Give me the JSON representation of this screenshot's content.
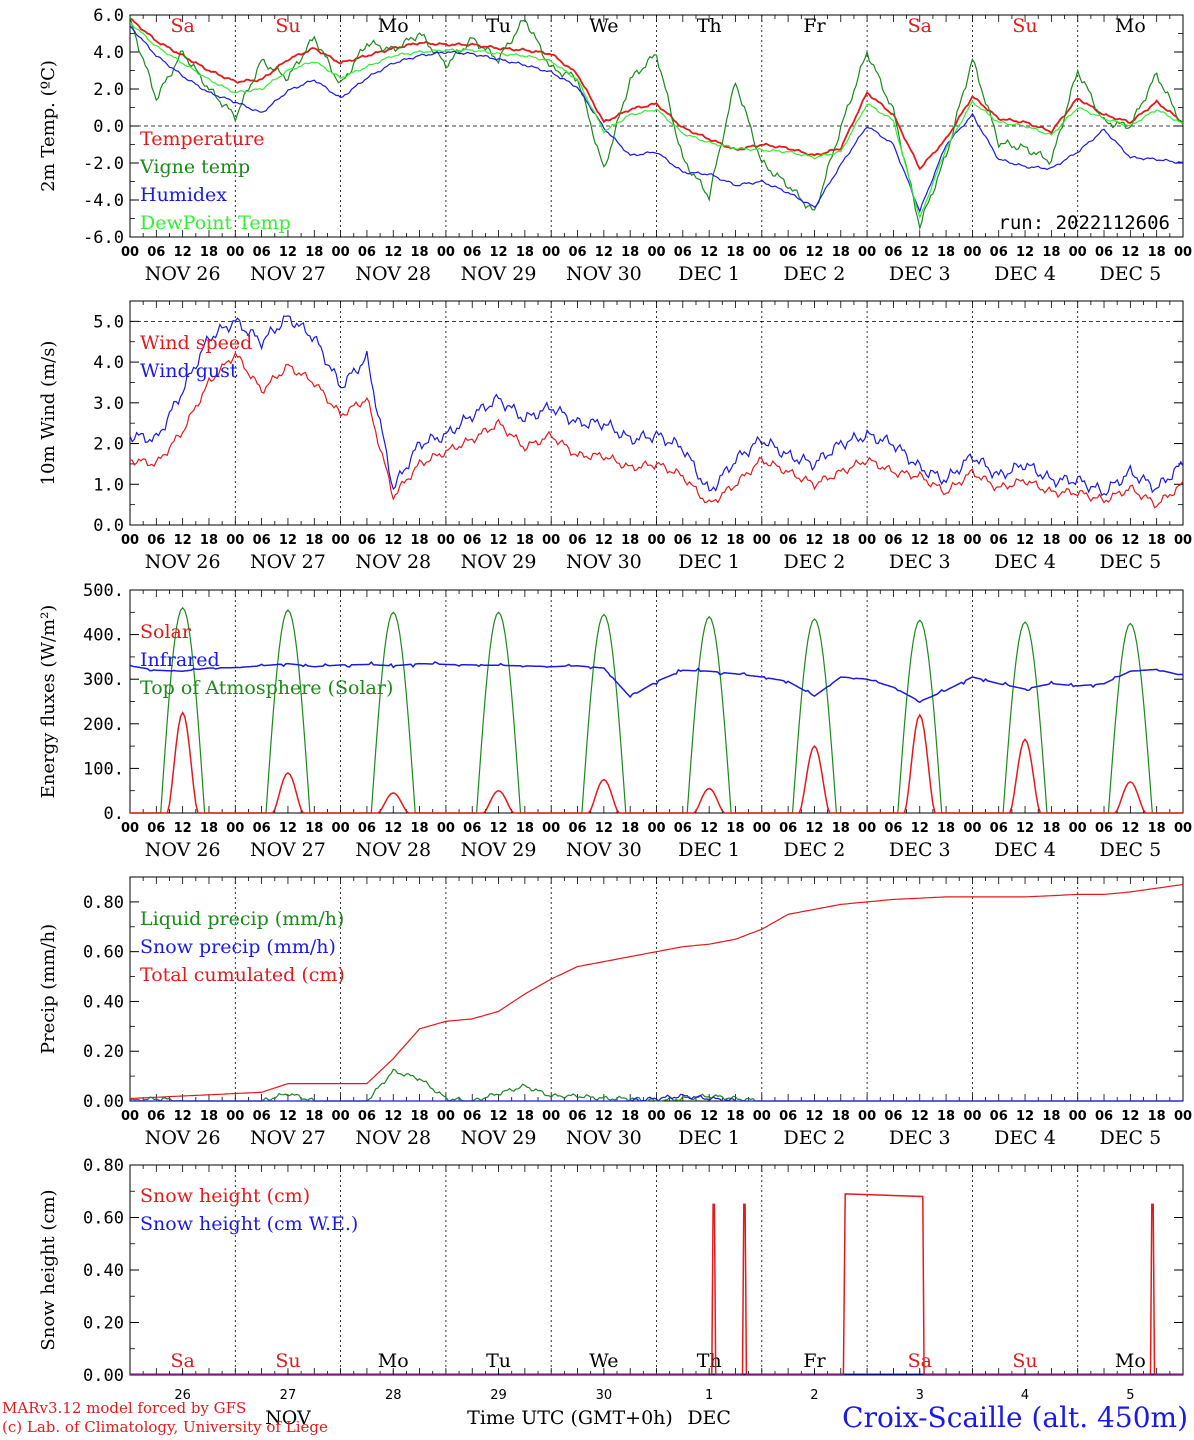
{
  "meta": {
    "run_label": "run: 2022112606",
    "credit_line1": "MARv3.12 model forced by GFS",
    "credit_line2": "(c) Lab. of Climatology, University of Liege",
    "station": "Croix-Scaille (alt. 450m)",
    "time_axis_label": "Time UTC (GMT+0h)",
    "month_label": "NOV",
    "month_label2": "DEC",
    "colors": {
      "red": "#e31a1c",
      "green": "#1a8a1a",
      "blue": "#1a1ae6",
      "lightgreen": "#33ee33"
    }
  },
  "time_axis": {
    "hour_ticks": [
      "00",
      "06",
      "12",
      "18"
    ],
    "hour_end": "00",
    "days": [
      "NOV 26",
      "NOV 27",
      "NOV 28",
      "NOV 29",
      "NOV 30",
      "DEC  1",
      "DEC  2",
      "DEC  3",
      "DEC  4",
      "DEC  5"
    ],
    "weekdays": [
      "Sa",
      "Su",
      "Mo",
      "Tu",
      "We",
      "Th",
      "Fr",
      "Sa",
      "Su",
      "Mo"
    ],
    "weekend": [
      true,
      true,
      false,
      false,
      false,
      false,
      false,
      true,
      true,
      false
    ],
    "day_numbers": [
      "26",
      "27",
      "28",
      "29",
      "30",
      "1",
      "2",
      "3",
      "4",
      "5"
    ]
  },
  "chart_data": [
    {
      "type": "line",
      "ylabel": "2m Temp. (ºC)",
      "ylim": [
        -6,
        6
      ],
      "yticks": [
        "6.0",
        "4.0",
        "2.0",
        "0.0",
        "-2.0",
        "-4.0",
        "-6.0"
      ],
      "x": [
        0,
        6,
        12,
        18,
        24,
        30,
        36,
        42,
        48,
        54,
        60,
        66,
        72,
        78,
        84,
        90,
        96,
        102,
        108,
        114,
        120,
        126,
        132,
        138,
        144,
        150,
        156,
        162,
        168,
        174,
        180,
        186,
        192,
        198,
        204,
        210,
        216,
        222,
        228,
        234,
        240
      ],
      "series": [
        {
          "name": "Temperature",
          "color": "#e31a1c",
          "values": [
            5.8,
            4.6,
            3.8,
            3.0,
            2.4,
            2.5,
            3.6,
            4.2,
            3.4,
            3.8,
            4.2,
            4.5,
            4.4,
            4.4,
            4.2,
            4.1,
            3.9,
            2.8,
            0.2,
            0.9,
            1.2,
            -0.1,
            -0.7,
            -1.3,
            -1.0,
            -1.2,
            -1.6,
            -1.2,
            1.8,
            0.6,
            -2.3,
            -0.7,
            1.6,
            0.4,
            0.2,
            -0.3,
            1.5,
            0.6,
            0.2,
            1.3,
            0.2
          ]
        },
        {
          "name": "Vigne temp",
          "color": "#1a8a1a",
          "values": [
            5.7,
            1.5,
            4.0,
            2.0,
            0.5,
            3.5,
            2.6,
            4.8,
            2.2,
            4.5,
            4.1,
            5.0,
            3.3,
            4.7,
            3.6,
            5.8,
            3.1,
            2.6,
            -2.4,
            2.5,
            3.9,
            -1.8,
            -3.8,
            2.4,
            -2.0,
            -3.2,
            -4.7,
            -0.1,
            4.0,
            0.8,
            -5.4,
            -1.6,
            3.6,
            -0.9,
            -1.2,
            -1.9,
            3.0,
            0.2,
            0.0,
            2.8,
            0.0
          ]
        },
        {
          "name": "Humidex",
          "color": "#1a1ae6",
          "values": [
            5.4,
            3.8,
            2.7,
            1.8,
            1.3,
            0.7,
            1.9,
            2.5,
            1.5,
            2.6,
            3.4,
            3.8,
            4.0,
            3.9,
            3.6,
            3.3,
            2.9,
            2.1,
            -0.1,
            -1.6,
            -1.4,
            -2.5,
            -2.6,
            -3.2,
            -3.0,
            -3.6,
            -4.4,
            -2.1,
            0.0,
            -1.0,
            -4.6,
            -1.0,
            0.6,
            -1.8,
            -2.2,
            -2.3,
            -1.4,
            -0.2,
            -1.7,
            -1.8,
            -2.0
          ]
        },
        {
          "name": "DewPoint Temp",
          "color": "#33ee33",
          "values": [
            5.6,
            4.3,
            3.4,
            2.5,
            1.8,
            2.0,
            3.0,
            3.5,
            2.6,
            3.2,
            3.8,
            4.0,
            4.1,
            4.1,
            3.9,
            3.8,
            3.5,
            2.5,
            -0.3,
            0.6,
            0.9,
            -0.4,
            -0.9,
            -1.2,
            -1.3,
            -1.4,
            -1.7,
            -1.4,
            1.2,
            0.3,
            -5.0,
            -1.2,
            1.3,
            0.2,
            0.0,
            -0.5,
            1.0,
            0.4,
            0.0,
            0.9,
            0.1
          ]
        }
      ]
    },
    {
      "type": "line",
      "ylabel": "10m Wind (m/s)",
      "ylim": [
        0,
        5.5
      ],
      "yticks": [
        "5.0",
        "4.0",
        "3.0",
        "2.0",
        "1.0",
        "0.0"
      ],
      "x": [
        0,
        6,
        12,
        18,
        24,
        30,
        36,
        42,
        48,
        54,
        60,
        66,
        72,
        78,
        84,
        90,
        96,
        102,
        108,
        114,
        120,
        126,
        132,
        138,
        144,
        150,
        156,
        162,
        168,
        174,
        180,
        186,
        192,
        198,
        204,
        210,
        216,
        222,
        228,
        234,
        240
      ],
      "series": [
        {
          "name": "Wind speed",
          "color": "#e31a1c",
          "values": [
            1.6,
            1.5,
            2.3,
            3.5,
            4.2,
            3.3,
            3.9,
            3.5,
            2.7,
            3.1,
            0.7,
            1.5,
            1.8,
            2.1,
            2.5,
            1.9,
            2.2,
            1.7,
            1.7,
            1.4,
            1.5,
            1.2,
            0.5,
            1.0,
            1.6,
            1.3,
            1.0,
            1.3,
            1.6,
            1.3,
            1.2,
            0.8,
            1.3,
            0.9,
            1.1,
            0.8,
            0.8,
            0.6,
            0.9,
            0.5,
            1.0
          ]
        },
        {
          "name": "Wind gust",
          "color": "#1a1ae6",
          "values": [
            2.2,
            2.1,
            3.3,
            4.6,
            5.0,
            4.5,
            5.1,
            4.6,
            3.4,
            4.1,
            0.9,
            2.0,
            2.2,
            2.7,
            3.1,
            2.6,
            2.9,
            2.5,
            2.5,
            2.1,
            2.2,
            1.9,
            0.8,
            1.6,
            2.1,
            1.7,
            1.5,
            2.0,
            2.2,
            2.0,
            1.4,
            1.1,
            1.7,
            1.2,
            1.5,
            1.1,
            1.1,
            0.8,
            1.3,
            0.9,
            1.5
          ]
        }
      ]
    },
    {
      "type": "line",
      "ylabel": "Energy fluxes (W/m²)",
      "ylim": [
        0,
        500
      ],
      "yticks": [
        "500.",
        "400.",
        "300.",
        "200.",
        "100.",
        "0."
      ],
      "x": [
        0,
        6,
        12,
        18,
        24,
        30,
        36,
        42,
        48,
        54,
        60,
        66,
        72,
        78,
        84,
        90,
        96,
        102,
        108,
        114,
        120,
        126,
        132,
        138,
        144,
        150,
        156,
        162,
        168,
        174,
        180,
        186,
        192,
        198,
        204,
        210,
        216,
        222,
        228,
        234,
        240
      ],
      "solar_peaks": [
        225,
        90,
        45,
        50,
        75,
        55,
        150,
        220,
        165,
        70
      ],
      "toa_peaks": [
        460,
        455,
        450,
        450,
        445,
        440,
        435,
        432,
        428,
        425
      ],
      "series": [
        {
          "name": "Solar",
          "color": "#e31a1c"
        },
        {
          "name": "Infrared",
          "color": "#1a1ae6",
          "values": [
            330,
            320,
            318,
            325,
            326,
            330,
            335,
            328,
            332,
            333,
            330,
            335,
            333,
            332,
            331,
            330,
            328,
            330,
            325,
            260,
            295,
            320,
            318,
            312,
            305,
            295,
            262,
            305,
            300,
            282,
            250,
            275,
            305,
            290,
            278,
            290,
            285,
            290,
            318,
            322,
            308
          ]
        },
        {
          "name": "Top of Atmosphere (Solar)",
          "color": "#1a8a1a"
        }
      ]
    },
    {
      "type": "line",
      "ylabel": "Precip (mm/h)",
      "ylim": [
        0,
        0.9
      ],
      "yticks": [
        "0.80",
        "0.60",
        "0.40",
        "0.20",
        "0.00"
      ],
      "x": [
        0,
        6,
        12,
        18,
        24,
        30,
        36,
        42,
        48,
        54,
        60,
        66,
        72,
        78,
        84,
        90,
        96,
        102,
        108,
        114,
        120,
        126,
        132,
        138,
        144,
        150,
        156,
        162,
        168,
        174,
        180,
        186,
        192,
        198,
        204,
        210,
        216,
        222,
        228,
        234,
        240
      ],
      "series": [
        {
          "name": "Liquid precip (mm/h)",
          "color": "#1a8a1a",
          "values": [
            0,
            0.01,
            0,
            0,
            0,
            0,
            0.03,
            0,
            0,
            0,
            0.12,
            0.09,
            0.01,
            0,
            0.03,
            0.06,
            0.02,
            0.02,
            0.01,
            0.01,
            0,
            0.01,
            0.02,
            0.01,
            0,
            0,
            0,
            0,
            0,
            0,
            0,
            0,
            0,
            0,
            0,
            0,
            0,
            0,
            0,
            0,
            0
          ]
        },
        {
          "name": "Snow precip (mm/h)",
          "color": "#1a1ae6",
          "values": [
            0,
            0,
            0,
            0,
            0,
            0,
            0,
            0,
            0,
            0,
            0,
            0,
            0,
            0,
            0,
            0,
            0,
            0,
            0,
            0,
            0.01,
            0.02,
            0.01,
            0,
            0,
            0,
            0,
            0,
            0,
            0,
            0,
            0,
            0,
            0,
            0,
            0,
            0,
            0,
            0,
            0,
            0
          ]
        },
        {
          "name": "Total cumulated (cm)",
          "color": "#e31a1c",
          "values": [
            0.01,
            0.015,
            0.02,
            0.025,
            0.03,
            0.035,
            0.07,
            0.07,
            0.07,
            0.07,
            0.17,
            0.29,
            0.32,
            0.33,
            0.36,
            0.43,
            0.49,
            0.54,
            0.56,
            0.58,
            0.6,
            0.62,
            0.63,
            0.65,
            0.69,
            0.75,
            0.77,
            0.79,
            0.8,
            0.81,
            0.815,
            0.82,
            0.82,
            0.82,
            0.82,
            0.825,
            0.83,
            0.83,
            0.84,
            0.855,
            0.87
          ]
        }
      ]
    },
    {
      "type": "line",
      "ylabel": "Snow height (cm)",
      "ylim": [
        0,
        0.8
      ],
      "yticks": [
        "0.80",
        "0.60",
        "0.40",
        "0.20",
        "0.00"
      ],
      "spikes_hours": [
        133,
        140,
        233
      ],
      "spike_value": 0.65,
      "plateau": {
        "from": 163,
        "to": 181,
        "value": 0.69
      },
      "series": [
        {
          "name": "Snow height (cm)",
          "color": "#e31a1c"
        },
        {
          "name": "Snow height (cm W.E.)",
          "color": "#1a1ae6"
        }
      ]
    }
  ]
}
